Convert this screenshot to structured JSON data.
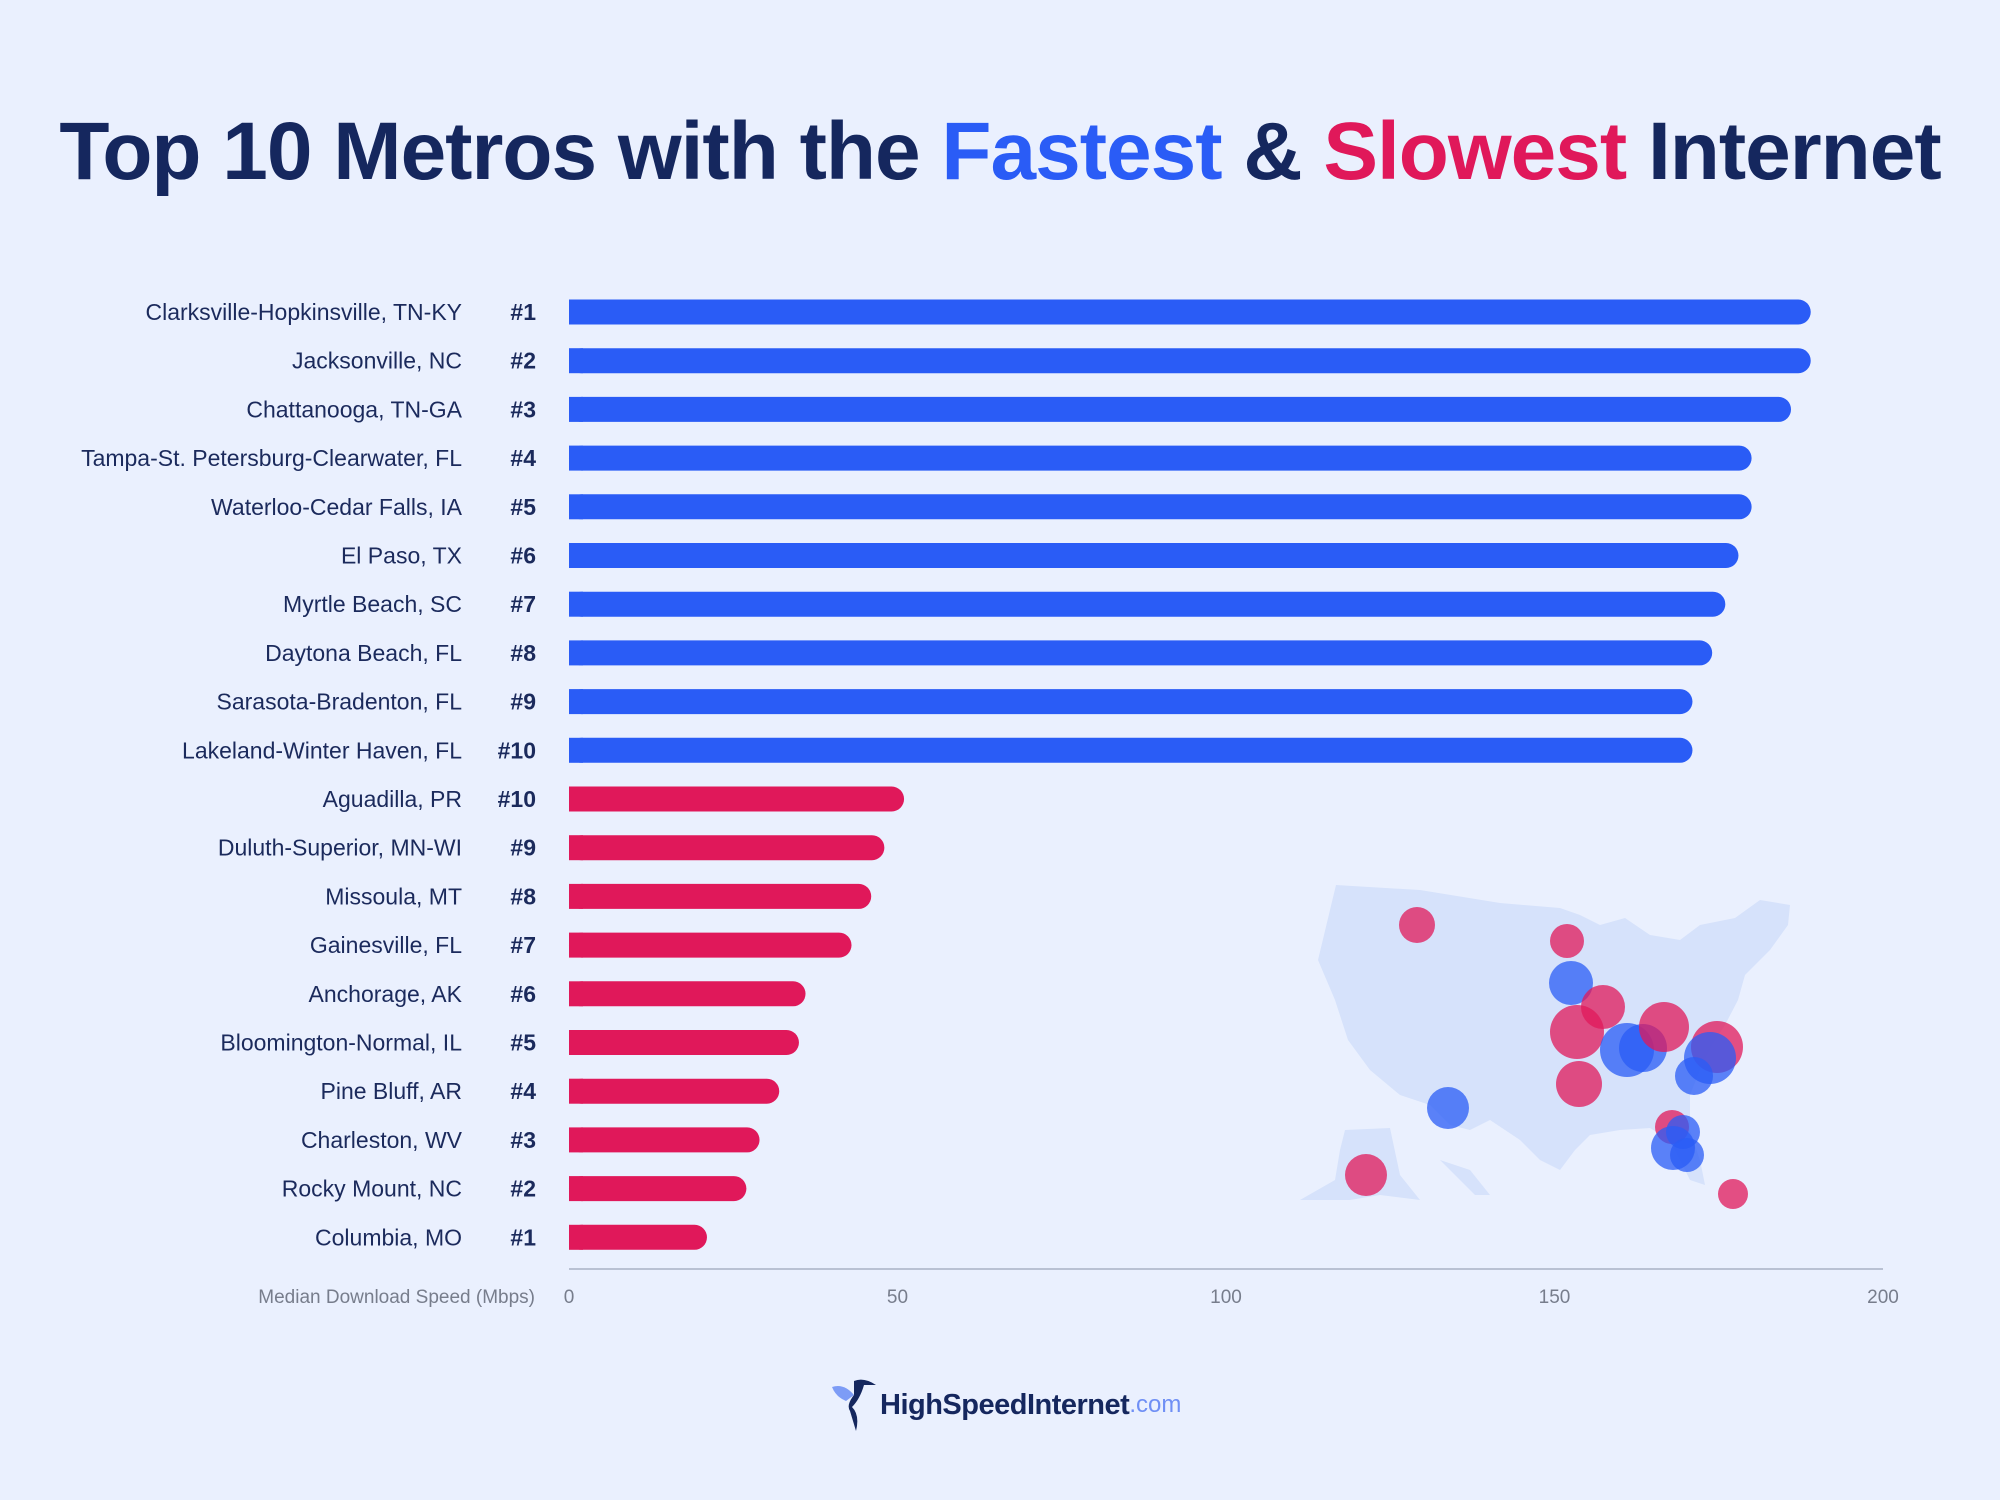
{
  "title": {
    "part1": "Top 10 Metros with the ",
    "fast": "Fastest",
    "amp": " & ",
    "slow": "Slowest",
    "part2": " Internet"
  },
  "colors": {
    "fast": "#2a5cf6",
    "slow": "#e0185a",
    "title": "#15275e",
    "background": "#eaf0fe"
  },
  "chart_data": {
    "type": "bar",
    "orientation": "horizontal",
    "xlabel": "Median Download Speed (Mbps)",
    "xlim": [
      0,
      200
    ],
    "xticks": [
      0,
      50,
      100,
      150,
      200
    ],
    "series": [
      {
        "name": "Fastest",
        "color": "#2a5cf6",
        "categories": [
          "Clarksville-Hopkinsville, TN-KY",
          "Jacksonville, NC",
          "Chattanooga, TN-GA",
          "Tampa-St. Petersburg-Clearwater, FL",
          "Waterloo-Cedar Falls, IA",
          "El Paso, TX",
          "Myrtle Beach, SC",
          "Daytona Beach, FL",
          "Sarasota-Bradenton, FL",
          "Lakeland-Winter Haven, FL"
        ],
        "ranks": [
          "#1",
          "#2",
          "#3",
          "#4",
          "#5",
          "#6",
          "#7",
          "#8",
          "#9",
          "#10"
        ],
        "values": [
          189,
          189,
          186,
          180,
          180,
          178,
          176,
          174,
          171,
          171
        ]
      },
      {
        "name": "Slowest",
        "color": "#e0185a",
        "categories": [
          "Aguadilla, PR",
          "Duluth-Superior, MN-WI",
          "Missoula, MT",
          "Gainesville, FL",
          "Anchorage, AK",
          "Bloomington-Normal, IL",
          "Pine Bluff, AR",
          "Charleston, WV",
          "Rocky Mount, NC",
          "Columbia, MO"
        ],
        "ranks": [
          "#10",
          "#9",
          "#8",
          "#7",
          "#6",
          "#5",
          "#4",
          "#3",
          "#2",
          "#1"
        ],
        "values": [
          51,
          48,
          46,
          43,
          36,
          35,
          32,
          29,
          27,
          21
        ]
      }
    ]
  },
  "logo": {
    "name": "HighSpeedInternet",
    "tld": ".com"
  }
}
